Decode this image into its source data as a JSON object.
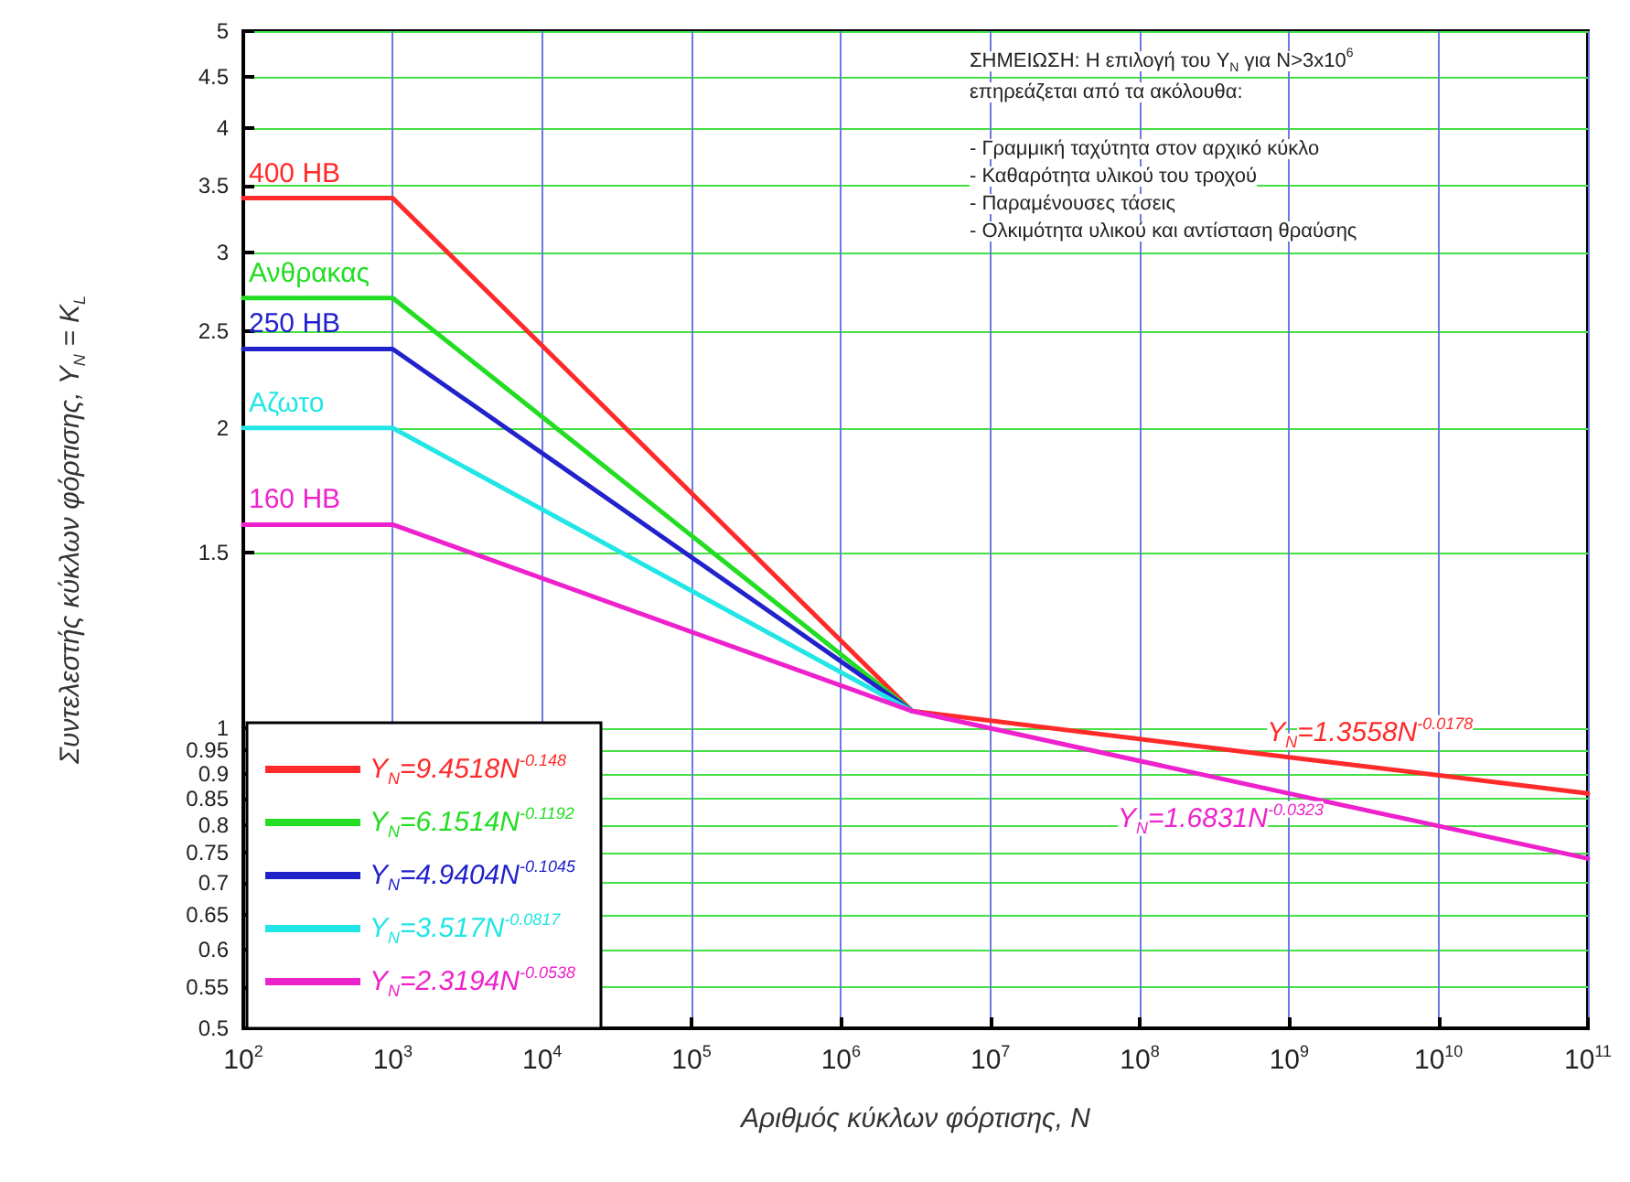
{
  "chart_data": {
    "type": "line",
    "xlabel": "Αριθμός κύκλων φόρτισης, N",
    "ylabel": "Συντελεστής κύκλων φόρτισης, Y$_{N}$ = K$_{L}$",
    "log": "xy",
    "grid": true,
    "legend": "bottom left",
    "marker": "none",
    "line_style": "solid",
    "xlim": [
      100,
      100000000000
    ],
    "ylim": [
      0.5,
      5
    ],
    "xticks": [
      {
        "value": 100,
        "label": "10$^{2}$"
      },
      {
        "value": 1000,
        "label": "10$^{3}$"
      },
      {
        "value": 10000,
        "label": "10$^{4}$"
      },
      {
        "value": 100000,
        "label": "10$^{5}$"
      },
      {
        "value": 1000000,
        "label": "10$^{6}$"
      },
      {
        "value": 10000000,
        "label": "10$^{7}$"
      },
      {
        "value": 100000000,
        "label": "10$^{8}$"
      },
      {
        "value": 1000000000,
        "label": "10$^{9}$"
      },
      {
        "value": 10000000000,
        "label": "10$^{10}$"
      },
      {
        "value": 100000000000,
        "label": "10$^{11}$"
      }
    ],
    "yticks": [
      0.5,
      0.55,
      0.6,
      0.65,
      0.7,
      0.75,
      0.8,
      0.85,
      0.9,
      0.95,
      1,
      1.5,
      2,
      2.5,
      3,
      3.5,
      4,
      4.5,
      5
    ],
    "series": [
      {
        "name": "Y$_{N}$=9.4518N$^{-0.148}$",
        "color": "#ff2a2a",
        "x": [
          100,
          1000,
          3000000,
          1000000000,
          100000000000
        ],
        "values": [
          3.4,
          3.4,
          1.04,
          0.935,
          0.86
        ]
      },
      {
        "name": "Y$_{N}$=6.1514N$^{-0.1192}$",
        "color": "#22dd22",
        "x": [
          100,
          1000,
          3000000
        ],
        "values": [
          2.7,
          2.7,
          1.04
        ]
      },
      {
        "name": "Y$_{N}$=4.9404N$^{-0.1045}$",
        "color": "#2222cc",
        "x": [
          100,
          1000,
          3000000
        ],
        "values": [
          2.4,
          2.4,
          1.04
        ]
      },
      {
        "name": "Y$_{N}$=3.517N$^{-0.0817}$",
        "color": "#22e5e5",
        "x": [
          100,
          1000,
          3000000
        ],
        "values": [
          2.0,
          2.0,
          1.04
        ]
      },
      {
        "name": "Y$_{N}$=2.3194N$^{-0.0538}$",
        "color": "#ee22cc",
        "x": [
          100,
          1000,
          3000000,
          100000000,
          100000000000
        ],
        "values": [
          1.6,
          1.6,
          1.04,
          0.927,
          0.74
        ]
      }
    ],
    "annotations": [
      {
        "text": "400 HB",
        "x": 100,
        "y": 3.4
      },
      {
        "text": "Ανθρακας",
        "x": 100,
        "y": 2.7
      },
      {
        "text": "250 HB",
        "x": 100,
        "y": 2.4
      },
      {
        "text": "Αζωτο",
        "x": 100,
        "y": 2.0
      },
      {
        "text": "160 HB",
        "x": 100,
        "y": 1.6
      },
      {
        "text": "Y$_{N}$=1.3558N$^{-0.0178}$",
        "x": 1000000000,
        "y": 0.935
      },
      {
        "text": "Y$_{N}$=1.6831N$^{-0.0323}$",
        "x": 100000000,
        "y": 0.927
      },
      "ΣΗΜΕΙΩΣΗ: Η επιλογή του Y$_{N}$ για N>3x10$^{6}$",
      "επηρεάζεται από τα ακόλουθα:",
      "- Γραμμική ταχύτητα στον αρχικό κύκλο",
      "- Καθαρότητα υλικού του τροχού",
      "- Παραμένουσες τάσεις",
      "- Ολκιμότητα υλικού και αντίσταση θραύσης"
    ]
  }
}
